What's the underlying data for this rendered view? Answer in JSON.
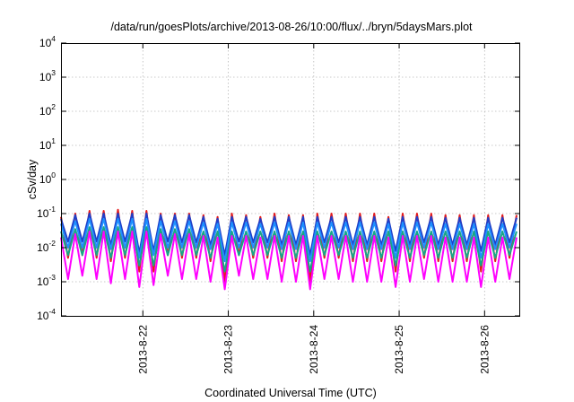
{
  "chart_data": {
    "type": "line",
    "title": "/data/run/goesPlots/archive/2013-08-26/10:00/flux/../bryn/5daysMars.plot",
    "xlabel": "Coordinated Universal Time (UTC)",
    "ylabel": "cSv/day",
    "y_scale": "log",
    "ylim": [
      0.0001,
      10000
    ],
    "y_ticks": [
      {
        "value": 0.0001,
        "base": "10",
        "exp": "-4"
      },
      {
        "value": 0.001,
        "base": "10",
        "exp": "-3"
      },
      {
        "value": 0.01,
        "base": "10",
        "exp": "-2"
      },
      {
        "value": 0.1,
        "base": "10",
        "exp": "-1"
      },
      {
        "value": 1,
        "base": "10",
        "exp": "0"
      },
      {
        "value": 10,
        "base": "10",
        "exp": "1"
      },
      {
        "value": 100,
        "base": "10",
        "exp": "2"
      },
      {
        "value": 1000,
        "base": "10",
        "exp": "3"
      },
      {
        "value": 10000,
        "base": "10",
        "exp": "4"
      }
    ],
    "xlim": [
      "2013-08-21T01:00",
      "2013-08-26T10:00"
    ],
    "x_ticks": [
      {
        "value": "2013-08-22T00:00",
        "label": "2013-8-22"
      },
      {
        "value": "2013-08-23T00:00",
        "label": "2013-8-23"
      },
      {
        "value": "2013-08-24T00:00",
        "label": "2013-8-24"
      },
      {
        "value": "2013-08-25T00:00",
        "label": "2013-8-25"
      },
      {
        "value": "2013-08-26T00:00",
        "label": "2013-8-26"
      }
    ],
    "x_tick_label_rotation": "vertical",
    "grid": true,
    "legend": "none",
    "sample_interval_hours": 2,
    "x": [
      "2013-08-21T01:00",
      "2013-08-21T03:00",
      "2013-08-21T05:00",
      "2013-08-21T07:00",
      "2013-08-21T09:00",
      "2013-08-21T11:00",
      "2013-08-21T13:00",
      "2013-08-21T15:00",
      "2013-08-21T17:00",
      "2013-08-21T19:00",
      "2013-08-21T21:00",
      "2013-08-21T23:00",
      "2013-08-22T01:00",
      "2013-08-22T03:00",
      "2013-08-22T05:00",
      "2013-08-22T07:00",
      "2013-08-22T09:00",
      "2013-08-22T11:00",
      "2013-08-22T13:00",
      "2013-08-22T15:00",
      "2013-08-22T17:00",
      "2013-08-22T19:00",
      "2013-08-22T21:00",
      "2013-08-22T23:00",
      "2013-08-23T01:00",
      "2013-08-23T03:00",
      "2013-08-23T05:00",
      "2013-08-23T07:00",
      "2013-08-23T09:00",
      "2013-08-23T11:00",
      "2013-08-23T13:00",
      "2013-08-23T15:00",
      "2013-08-23T17:00",
      "2013-08-23T19:00",
      "2013-08-23T21:00",
      "2013-08-23T23:00",
      "2013-08-24T01:00",
      "2013-08-24T03:00",
      "2013-08-24T05:00",
      "2013-08-24T07:00",
      "2013-08-24T09:00",
      "2013-08-24T11:00",
      "2013-08-24T13:00",
      "2013-08-24T15:00",
      "2013-08-24T17:00",
      "2013-08-24T19:00",
      "2013-08-24T21:00",
      "2013-08-24T23:00",
      "2013-08-25T01:00",
      "2013-08-25T03:00",
      "2013-08-25T05:00",
      "2013-08-25T07:00",
      "2013-08-25T09:00",
      "2013-08-25T11:00",
      "2013-08-25T13:00",
      "2013-08-25T15:00",
      "2013-08-25T17:00",
      "2013-08-25T19:00",
      "2013-08-25T21:00",
      "2013-08-25T23:00",
      "2013-08-26T01:00",
      "2013-08-26T03:00",
      "2013-08-26T05:00",
      "2013-08-26T07:00",
      "2013-08-26T09:00"
    ],
    "series": [
      {
        "color": "#e41a1c",
        "values": [
          0.08,
          0.005,
          0.1,
          0.006,
          0.12,
          0.005,
          0.12,
          0.004,
          0.13,
          0.005,
          0.12,
          0.002,
          0.12,
          0.002,
          0.1,
          0.006,
          0.1,
          0.005,
          0.1,
          0.005,
          0.09,
          0.004,
          0.08,
          0.001,
          0.1,
          0.006,
          0.09,
          0.005,
          0.08,
          0.005,
          0.1,
          0.004,
          0.09,
          0.004,
          0.09,
          0.001,
          0.1,
          0.005,
          0.1,
          0.005,
          0.1,
          0.004,
          0.1,
          0.004,
          0.1,
          0.004,
          0.08,
          0.002,
          0.1,
          0.004,
          0.1,
          0.005,
          0.1,
          0.004,
          0.09,
          0.004,
          0.09,
          0.004,
          0.09,
          0.002,
          0.09,
          0.004,
          0.09,
          0.005,
          0.09
        ]
      },
      {
        "color": "#1f3fc8",
        "values": [
          0.07,
          0.015,
          0.09,
          0.015,
          0.1,
          0.015,
          0.1,
          0.012,
          0.1,
          0.015,
          0.1,
          0.007,
          0.1,
          0.008,
          0.09,
          0.015,
          0.09,
          0.014,
          0.09,
          0.014,
          0.08,
          0.012,
          0.07,
          0.006,
          0.08,
          0.015,
          0.08,
          0.014,
          0.07,
          0.014,
          0.08,
          0.012,
          0.08,
          0.012,
          0.08,
          0.006,
          0.08,
          0.014,
          0.08,
          0.014,
          0.08,
          0.012,
          0.08,
          0.012,
          0.08,
          0.012,
          0.07,
          0.008,
          0.08,
          0.012,
          0.08,
          0.014,
          0.08,
          0.012,
          0.075,
          0.012,
          0.075,
          0.012,
          0.075,
          0.008,
          0.075,
          0.012,
          0.075,
          0.014,
          0.075
        ]
      },
      {
        "color": "#1e90ff",
        "values": [
          0.05,
          0.01,
          0.06,
          0.01,
          0.07,
          0.01,
          0.07,
          0.009,
          0.07,
          0.01,
          0.07,
          0.005,
          0.07,
          0.006,
          0.06,
          0.01,
          0.06,
          0.01,
          0.06,
          0.01,
          0.055,
          0.009,
          0.05,
          0.004,
          0.055,
          0.01,
          0.055,
          0.01,
          0.05,
          0.01,
          0.055,
          0.009,
          0.055,
          0.009,
          0.055,
          0.004,
          0.055,
          0.01,
          0.055,
          0.01,
          0.055,
          0.009,
          0.055,
          0.009,
          0.055,
          0.009,
          0.05,
          0.005,
          0.055,
          0.009,
          0.055,
          0.01,
          0.055,
          0.009,
          0.05,
          0.009,
          0.05,
          0.009,
          0.05,
          0.005,
          0.05,
          0.009,
          0.05,
          0.01,
          0.05
        ]
      },
      {
        "color": "#17a589",
        "values": [
          0.03,
          0.006,
          0.035,
          0.006,
          0.04,
          0.006,
          0.04,
          0.005,
          0.04,
          0.006,
          0.04,
          0.003,
          0.04,
          0.003,
          0.035,
          0.006,
          0.035,
          0.006,
          0.035,
          0.006,
          0.03,
          0.005,
          0.03,
          0.002,
          0.03,
          0.006,
          0.03,
          0.006,
          0.03,
          0.006,
          0.03,
          0.005,
          0.03,
          0.005,
          0.03,
          0.002,
          0.03,
          0.006,
          0.03,
          0.006,
          0.03,
          0.005,
          0.03,
          0.005,
          0.03,
          0.005,
          0.03,
          0.003,
          0.03,
          0.005,
          0.03,
          0.006,
          0.03,
          0.005,
          0.03,
          0.005,
          0.03,
          0.005,
          0.03,
          0.003,
          0.03,
          0.005,
          0.03,
          0.006,
          0.03
        ]
      },
      {
        "color": "#ff00ff",
        "values": [
          0.02,
          0.0012,
          0.025,
          0.0015,
          0.03,
          0.0012,
          0.03,
          0.0009,
          0.03,
          0.0012,
          0.03,
          0.0007,
          0.03,
          0.0008,
          0.025,
          0.0015,
          0.025,
          0.0012,
          0.025,
          0.0012,
          0.022,
          0.001,
          0.02,
          0.0006,
          0.022,
          0.0015,
          0.022,
          0.0012,
          0.02,
          0.0012,
          0.022,
          0.001,
          0.022,
          0.001,
          0.022,
          0.0006,
          0.022,
          0.0012,
          0.022,
          0.0012,
          0.022,
          0.001,
          0.022,
          0.001,
          0.022,
          0.001,
          0.02,
          0.0007,
          0.022,
          0.001,
          0.022,
          0.0012,
          0.022,
          0.001,
          0.02,
          0.001,
          0.02,
          0.001,
          0.02,
          0.0007,
          0.02,
          0.001,
          0.02,
          0.0012,
          0.02
        ]
      }
    ]
  }
}
